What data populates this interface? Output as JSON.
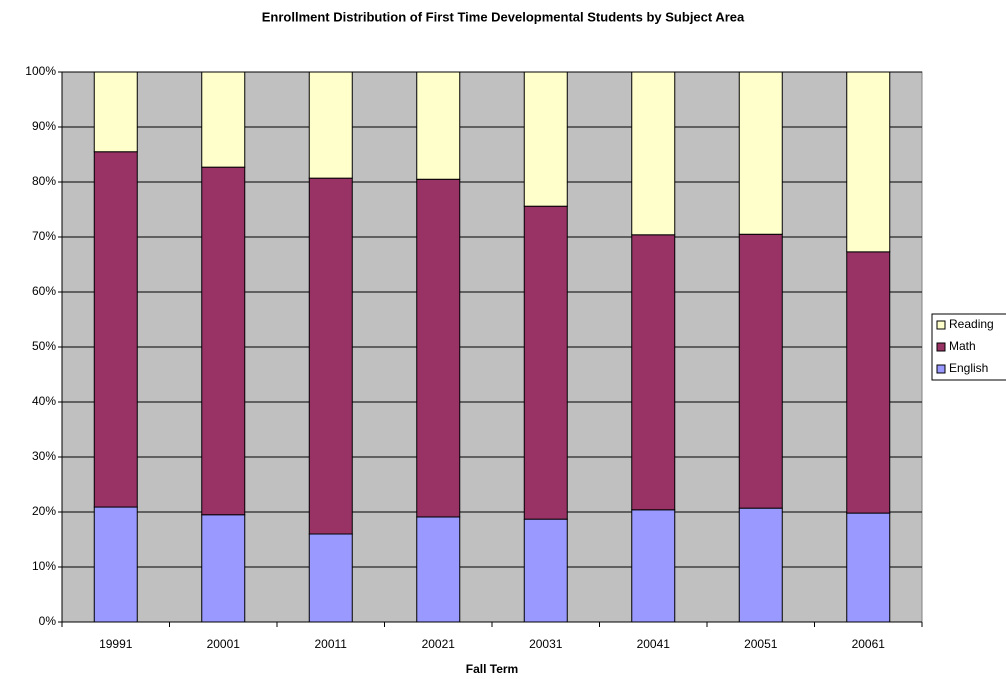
{
  "chart_data": {
    "type": "stacked_bar",
    "title": "Enrollment Distribution of First Time Developmental Students by Subject Area",
    "x_label": "Fall Term",
    "categories": [
      "19991",
      "20001",
      "20011",
      "20021",
      "20031",
      "20041",
      "20051",
      "20061"
    ],
    "series": [
      {
        "name": "English",
        "color": "#9999ff",
        "values": [
          20.9,
          19.5,
          16,
          19.1,
          18.7,
          20.4,
          20.7,
          19.8
        ]
      },
      {
        "name": "Math",
        "color": "#993366",
        "values": [
          64.6,
          63.2,
          64.7,
          61.4,
          56.9,
          50,
          49.8,
          47.5
        ]
      },
      {
        "name": "Reading",
        "color": "#ffffcc",
        "values": [
          14.5,
          17.3,
          19.3,
          19.5,
          24.4,
          29.6,
          29.5,
          32.7
        ]
      }
    ],
    "ylim": [
      0,
      100
    ],
    "yticks": [
      {
        "value": 0,
        "label": "0%"
      },
      {
        "value": 10,
        "label": "10%"
      },
      {
        "value": 20,
        "label": "20%"
      },
      {
        "value": 30,
        "label": "30%"
      },
      {
        "value": 40,
        "label": "40%"
      },
      {
        "value": 50,
        "label": "50%"
      },
      {
        "value": 60,
        "label": "60%"
      },
      {
        "value": 70,
        "label": "70%"
      },
      {
        "value": 80,
        "label": "80%"
      },
      {
        "value": 90,
        "label": "90%"
      },
      {
        "value": 100,
        "label": "100%"
      }
    ],
    "grid": true,
    "legend": "right"
  }
}
